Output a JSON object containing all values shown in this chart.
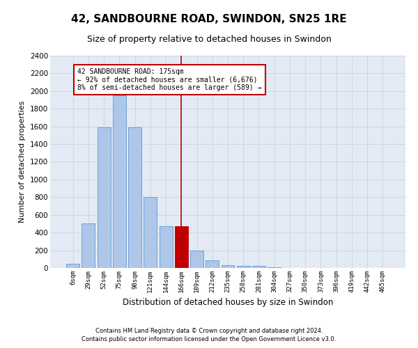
{
  "title": "42, SANDBOURNE ROAD, SWINDON, SN25 1RE",
  "subtitle": "Size of property relative to detached houses in Swindon",
  "xlabel": "Distribution of detached houses by size in Swindon",
  "ylabel": "Number of detached properties",
  "footnote1": "Contains HM Land Registry data © Crown copyright and database right 2024.",
  "footnote2": "Contains public sector information licensed under the Open Government Licence v3.0.",
  "categories": [
    "6sqm",
    "29sqm",
    "52sqm",
    "75sqm",
    "98sqm",
    "121sqm",
    "144sqm",
    "166sqm",
    "189sqm",
    "212sqm",
    "235sqm",
    "258sqm",
    "281sqm",
    "304sqm",
    "327sqm",
    "350sqm",
    "373sqm",
    "396sqm",
    "419sqm",
    "442sqm",
    "465sqm"
  ],
  "values": [
    50,
    500,
    1590,
    1950,
    1590,
    800,
    470,
    470,
    195,
    85,
    30,
    20,
    20,
    10,
    0,
    0,
    0,
    0,
    0,
    0,
    0
  ],
  "bar_color": "#aec6e8",
  "bar_edge_color": "#5b9bd5",
  "highlight_bar_index": 7,
  "highlight_bar_color": "#c00000",
  "vline_x": 7,
  "vline_color": "#c00000",
  "annotation_text": "42 SANDBOURNE ROAD: 175sqm\n← 92% of detached houses are smaller (6,676)\n8% of semi-detached houses are larger (589) →",
  "annotation_box_edgecolor": "#c00000",
  "ylim": [
    0,
    2400
  ],
  "yticks": [
    0,
    200,
    400,
    600,
    800,
    1000,
    1200,
    1400,
    1600,
    1800,
    2000,
    2200,
    2400
  ],
  "grid_color": "#cdd5e5",
  "bg_color": "#e4eaf4",
  "title_fontsize": 11,
  "subtitle_fontsize": 9,
  "tick_label_fontsize": 6.5,
  "ylabel_fontsize": 8,
  "xlabel_fontsize": 8.5,
  "annotation_fontsize": 7,
  "footnote_fontsize": 6
}
